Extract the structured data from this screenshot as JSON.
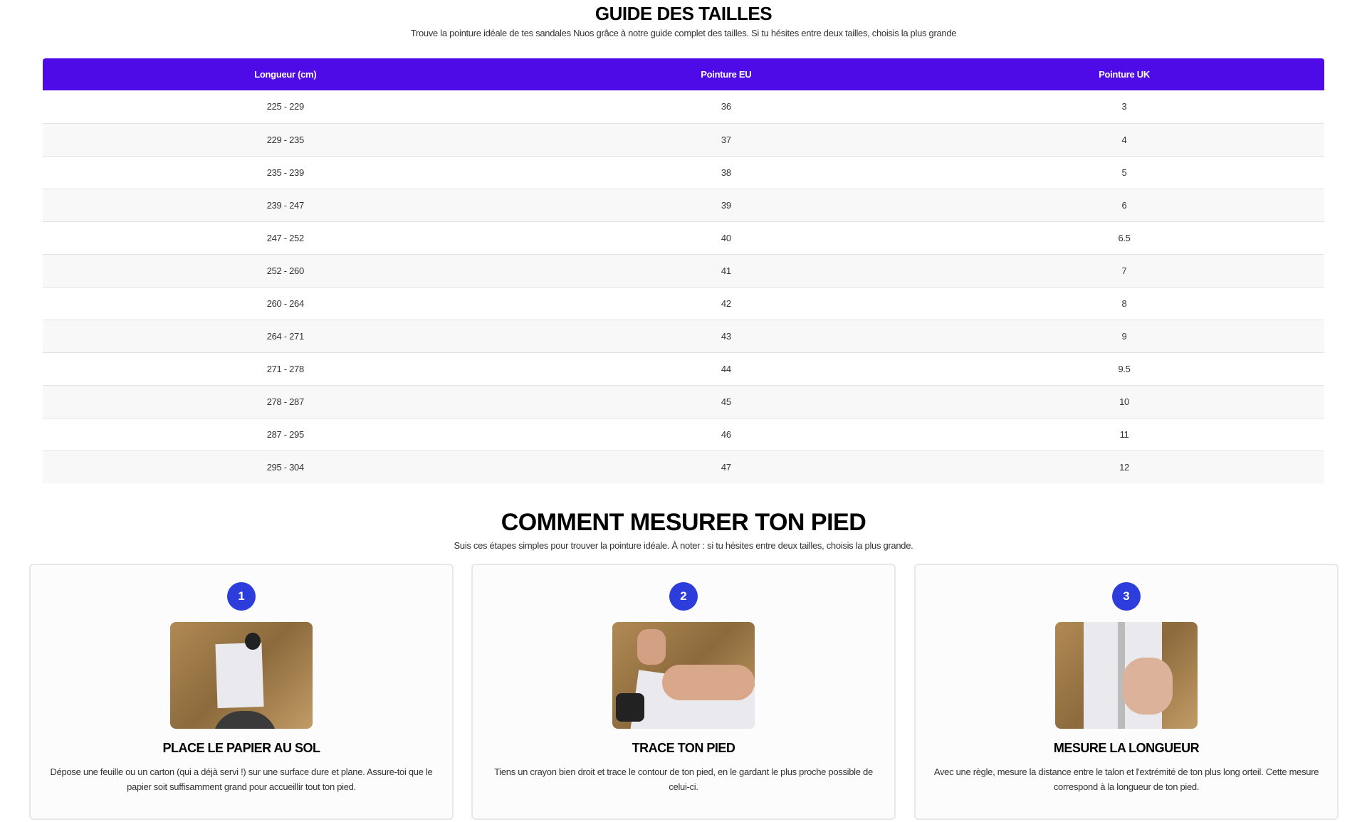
{
  "guide": {
    "title": "GUIDE DES TAILLES",
    "subtitle": "Trouve la pointure idéale de tes sandales Nuos grâce à notre guide complet des tailles. Si tu hésites entre deux tailles, choisis la plus grande"
  },
  "table": {
    "headers": [
      "Longueur (cm)",
      "Pointure EU",
      "Pointure UK"
    ],
    "rows": [
      [
        "225 - 229",
        "36",
        "3"
      ],
      [
        "229 - 235",
        "37",
        "4"
      ],
      [
        "235 - 239",
        "38",
        "5"
      ],
      [
        "239 - 247",
        "39",
        "6"
      ],
      [
        "247 - 252",
        "40",
        "6.5"
      ],
      [
        "252 - 260",
        "41",
        "7"
      ],
      [
        "260 - 264",
        "42",
        "8"
      ],
      [
        "264 - 271",
        "43",
        "9"
      ],
      [
        "271 - 278",
        "44",
        "9.5"
      ],
      [
        "278 - 287",
        "45",
        "10"
      ],
      [
        "287 - 295",
        "46",
        "11"
      ],
      [
        "295 - 304",
        "47",
        "12"
      ]
    ]
  },
  "measure": {
    "title": "COMMENT MESURER TON PIED",
    "subtitle": "Suis ces étapes simples pour trouver la pointure idéale. À noter : si tu hésites entre deux tailles, choisis la plus grande.",
    "steps": [
      {
        "number": "1",
        "title": "PLACE LE PAPIER AU SOL",
        "text": "Dépose une feuille ou un carton (qui a déjà servi !) sur une surface dure et plane. Assure-toi que le papier soit suffisamment grand pour accueillir tout ton pied."
      },
      {
        "number": "2",
        "title": "TRACE TON PIED",
        "text": "Tiens un crayon bien droit et trace le contour de ton pied, en le gardant le plus proche possible de celui-ci."
      },
      {
        "number": "3",
        "title": "MESURE LA LONGUEUR",
        "text": "Avec une règle, mesure la distance entre le talon et l'extrémité de ton plus long orteil. Cette mesure correspond à la longueur de ton pied."
      }
    ]
  },
  "colors": {
    "header_bg": "#4f0ae8",
    "step_badge": "#2c3ddc"
  }
}
